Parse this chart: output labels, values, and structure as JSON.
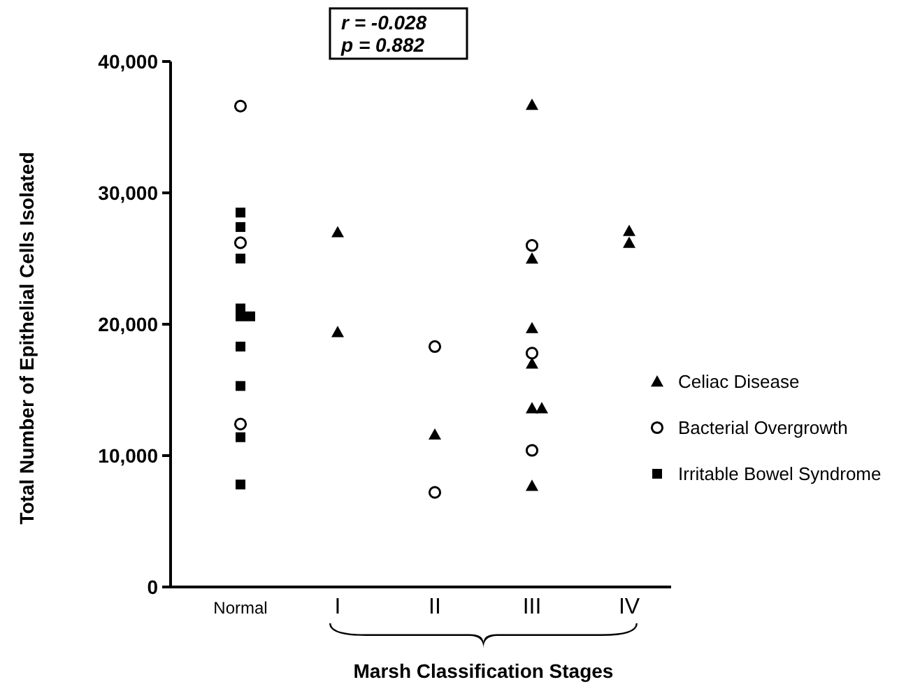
{
  "chart_data": {
    "type": "scatter",
    "xlabel": "Marsh Classification Stages",
    "ylabel": "Total Number of Epithelial Cells Isolated",
    "categories": [
      "Normal",
      "I",
      "II",
      "III",
      "IV"
    ],
    "series": [
      {
        "name": "Celiac Disease",
        "color": "#000000",
        "marker": "triangle",
        "x": [
          "I",
          "I",
          "II",
          "III",
          "III",
          "III",
          "III",
          "III",
          "III",
          "III",
          "IV",
          "IV"
        ],
        "values": [
          27000,
          19400,
          11600,
          36700,
          25000,
          19700,
          17000,
          13600,
          13600,
          7700,
          27100,
          26200
        ]
      },
      {
        "name": "Bacterial Overgrowth",
        "color": "#000000",
        "marker": "circle",
        "x": [
          "Normal",
          "Normal",
          "Normal",
          "II",
          "II",
          "III",
          "III",
          "III"
        ],
        "values": [
          36600,
          26200,
          12400,
          18300,
          7200,
          26000,
          17800,
          10400
        ]
      },
      {
        "name": "Irritable Bowel Syndrome",
        "color": "#000000",
        "marker": "square",
        "x": [
          "Normal",
          "Normal",
          "Normal",
          "Normal",
          "Normal",
          "Normal",
          "Normal",
          "Normal",
          "Normal",
          "Normal"
        ],
        "values": [
          28500,
          27400,
          25000,
          21200,
          20600,
          20600,
          18300,
          15300,
          11400,
          7800
        ]
      }
    ],
    "ylim": [
      0,
      40000
    ],
    "yticks": [
      {
        "value": 0,
        "label": "0"
      },
      {
        "value": 10000,
        "label": "10,000"
      },
      {
        "value": 20000,
        "label": "20,000"
      },
      {
        "value": 30000,
        "label": "30,000"
      },
      {
        "value": 40000,
        "label": "40,000"
      }
    ],
    "grid": false,
    "legend": "right",
    "annotations": [
      "r = -0.028",
      "p = 0.882"
    ]
  }
}
